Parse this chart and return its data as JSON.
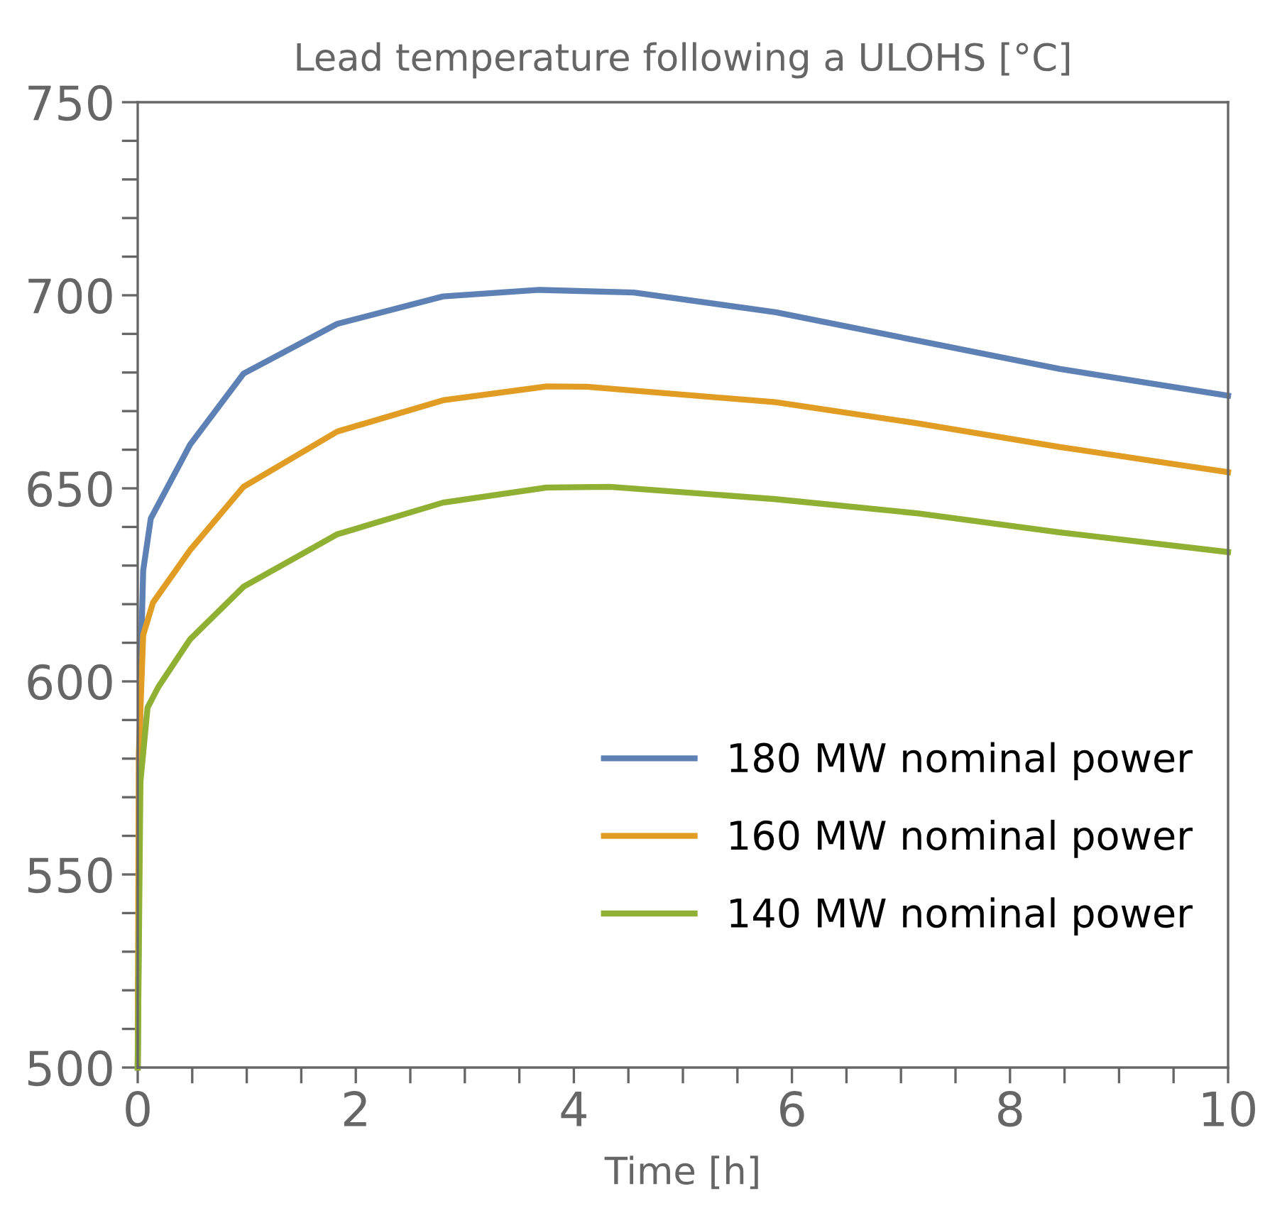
{
  "chart_data": {
    "type": "line",
    "title": "Lead temperature following a ULOHS [°C]",
    "xlabel": "Time [h]",
    "series": [
      {
        "name": "180 MW nominal power",
        "color": "#5e81b5",
        "x": [
          0,
          0.025,
          0.05,
          0.12,
          0.48,
          0.97,
          1.83,
          2.8,
          3.68,
          4.55,
          5.85,
          7.16,
          8.46,
          10
        ],
        "values": [
          500,
          601,
          628.7,
          642.2,
          661.3,
          679.7,
          692.6,
          699.7,
          701.4,
          700.7,
          695.6,
          688.2,
          680.9,
          674
        ]
      },
      {
        "name": "160 MW nominal power",
        "color": "#e19c24",
        "x": [
          0,
          0.01,
          0.05,
          0.14,
          0.48,
          0.97,
          1.83,
          2.8,
          3.75,
          4.12,
          5.85,
          7.16,
          8.46,
          10
        ],
        "values": [
          500,
          581,
          612,
          620.4,
          634,
          650.4,
          664.7,
          672.8,
          676.4,
          676.3,
          672.3,
          666.8,
          660.7,
          654.2
        ]
      },
      {
        "name": "140 MW nominal power",
        "color": "#8fb032",
        "x": [
          0,
          0.025,
          0.09,
          0.19,
          0.48,
          0.97,
          1.83,
          2.8,
          3.75,
          4.33,
          5.85,
          7.16,
          8.46,
          10
        ],
        "values": [
          500,
          574,
          593.2,
          598.6,
          610.9,
          624.5,
          638.1,
          646.3,
          650.2,
          650.4,
          647.2,
          643.5,
          638.6,
          633.5
        ]
      }
    ],
    "xlim": [
      0,
      10
    ],
    "ylim": [
      500,
      750
    ],
    "xticks": [
      0,
      {
        "value": 0.5,
        "label": null
      },
      {
        "value": 1,
        "label": null
      },
      {
        "value": 1.5,
        "label": null
      },
      2,
      {
        "value": 2.5,
        "label": null
      },
      {
        "value": 3,
        "label": null
      },
      {
        "value": 3.5,
        "label": null
      },
      4,
      {
        "value": 4.5,
        "label": null
      },
      {
        "value": 5,
        "label": null
      },
      {
        "value": 5.5,
        "label": null
      },
      6,
      {
        "value": 6.5,
        "label": null
      },
      {
        "value": 7,
        "label": null
      },
      {
        "value": 7.5,
        "label": null
      },
      8,
      {
        "value": 8.5,
        "label": null
      },
      {
        "value": 9,
        "label": null
      },
      {
        "value": 9.5,
        "label": null
      },
      10
    ],
    "yticks": [
      500,
      {
        "value": 510,
        "label": null
      },
      {
        "value": 520,
        "label": null
      },
      {
        "value": 530,
        "label": null
      },
      {
        "value": 540,
        "label": null
      },
      550,
      {
        "value": 560,
        "label": null
      },
      {
        "value": 570,
        "label": null
      },
      {
        "value": 580,
        "label": null
      },
      {
        "value": 590,
        "label": null
      },
      600,
      {
        "value": 610,
        "label": null
      },
      {
        "value": 620,
        "label": null
      },
      {
        "value": 630,
        "label": null
      },
      {
        "value": 640,
        "label": null
      },
      650,
      {
        "value": 660,
        "label": null
      },
      {
        "value": 670,
        "label": null
      },
      {
        "value": 680,
        "label": null
      },
      {
        "value": 690,
        "label": null
      },
      700,
      {
        "value": 710,
        "label": null
      },
      {
        "value": 720,
        "label": null
      },
      {
        "value": 730,
        "label": null
      },
      {
        "value": 740,
        "label": null
      },
      750
    ],
    "grid": false,
    "legend": "bottom right",
    "marker": "none",
    "line_style": "solid"
  }
}
